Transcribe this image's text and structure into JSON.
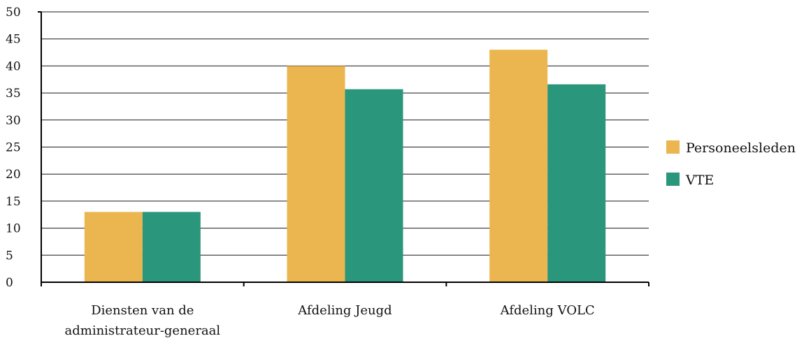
{
  "chart_data": {
    "type": "bar",
    "categories": [
      [
        "Diensten van de",
        "administrateur-generaal"
      ],
      [
        "Afdeling Jeugd"
      ],
      [
        "Afdeling VOLC"
      ]
    ],
    "series": [
      {
        "name": "Personeelsleden",
        "color": "#EBB64F",
        "values": [
          13,
          40,
          43
        ]
      },
      {
        "name": "VTE",
        "color": "#2A967C",
        "values": [
          13,
          35.7,
          36.6
        ]
      }
    ],
    "y_ticks": [
      "0",
      "5",
      "10",
      "15",
      "20",
      "25",
      "30",
      "35",
      "40",
      "45",
      "50"
    ],
    "ylim": [
      0,
      50
    ],
    "grid": true,
    "legend_position": "right",
    "title": "",
    "xlabel": "",
    "ylabel": ""
  }
}
